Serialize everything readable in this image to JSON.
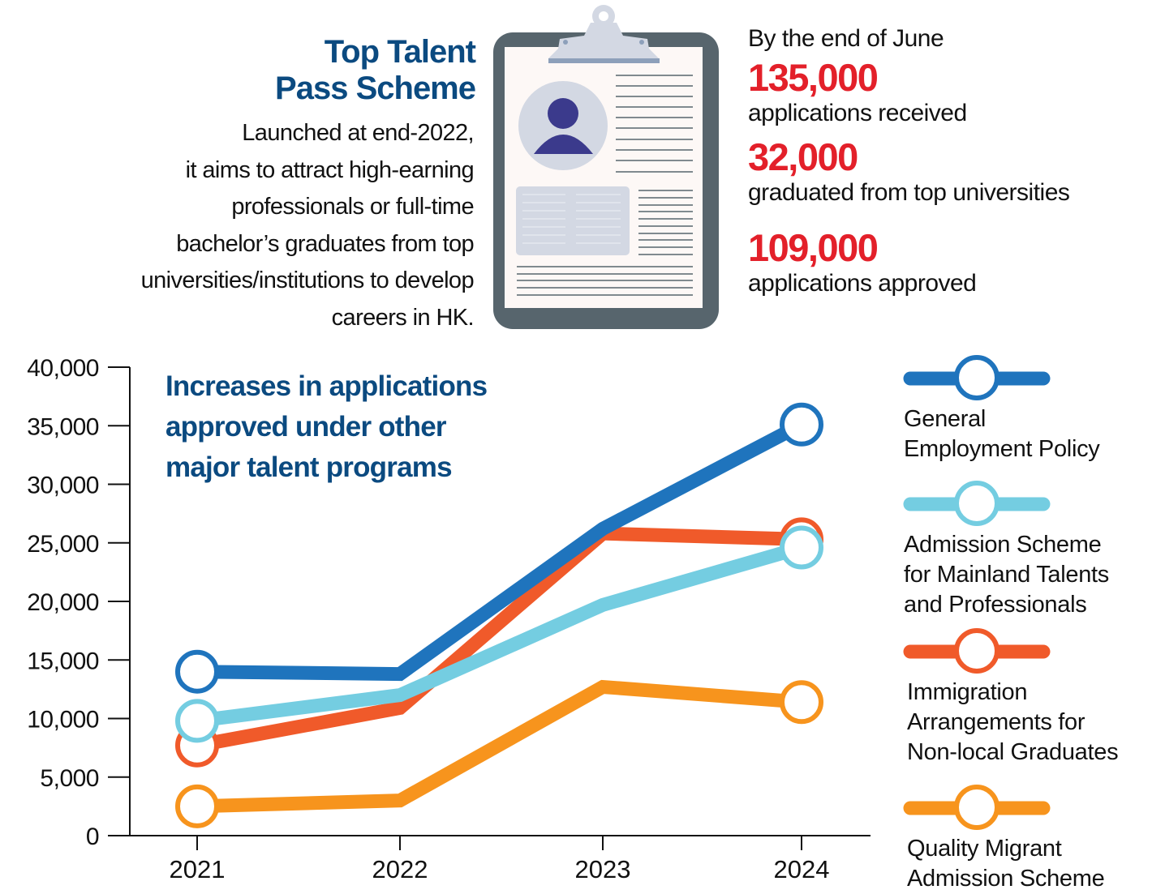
{
  "intro": {
    "title_lines": [
      "Top Talent",
      "Pass Scheme"
    ],
    "body_lines": [
      "Launched at end-2022,",
      "it aims to attract high-earning",
      "professionals or full-time",
      "bachelor’s graduates from top",
      "universities/institutions to develop",
      "careers in HK."
    ],
    "illustration": "clipboard-resume-icon"
  },
  "stats": {
    "lead": "By the end of June",
    "items": [
      {
        "value": "135,000",
        "label": "applications received"
      },
      {
        "value": "32,000",
        "label": "graduated from top universities"
      },
      {
        "value": "109,000",
        "label": "applications approved"
      }
    ],
    "accent_color": "#e3202a"
  },
  "colors": {
    "title_blue": "#0b4a80",
    "clipboard_frame": "#57656d",
    "clipboard_paper": "#fdf8f6",
    "clip": "#d3d8e3",
    "avatar": "#3b3a8c"
  },
  "chart_data": {
    "type": "line",
    "title_lines": [
      "Increases in applications",
      "approved under other",
      "major talent programs"
    ],
    "xlabel": "",
    "ylabel": "",
    "x": [
      "2021",
      "2022",
      "2023",
      "2024"
    ],
    "ylim": [
      0,
      40000
    ],
    "yticks": [
      0,
      5000,
      10000,
      15000,
      20000,
      25000,
      30000,
      35000,
      40000
    ],
    "ytick_labels": [
      "0",
      "5,000",
      "10,000",
      "15,000",
      "20,000",
      "25,000",
      "30,000",
      "35,000",
      "40,000"
    ],
    "grid": false,
    "legend_position": "right",
    "series": [
      {
        "name": "General Employment Policy",
        "label_lines": [
          "General",
          "Employment Policy"
        ],
        "color": "#1f74bd",
        "values": [
          14000,
          13800,
          26200,
          35100
        ]
      },
      {
        "name": "Admission Scheme for Mainland Talents and Professionals",
        "label_lines": [
          "Admission Scheme",
          "for Mainland Talents",
          "and Professionals"
        ],
        "color": "#74cde1",
        "values": [
          9800,
          12000,
          19700,
          24600
        ]
      },
      {
        "name": "Immigration Arrangements for Non-local Graduates",
        "label_lines": [
          "Immigration",
          "Arrangements for",
          "Non-local Graduates"
        ],
        "color": "#f05a2a",
        "values": [
          7700,
          10900,
          25800,
          25300
        ]
      },
      {
        "name": "Quality Migrant Admission Scheme",
        "label_lines": [
          "Quality Migrant",
          "Admission Scheme"
        ],
        "color": "#f7941d",
        "values": [
          2500,
          3000,
          12700,
          11400
        ]
      }
    ]
  }
}
